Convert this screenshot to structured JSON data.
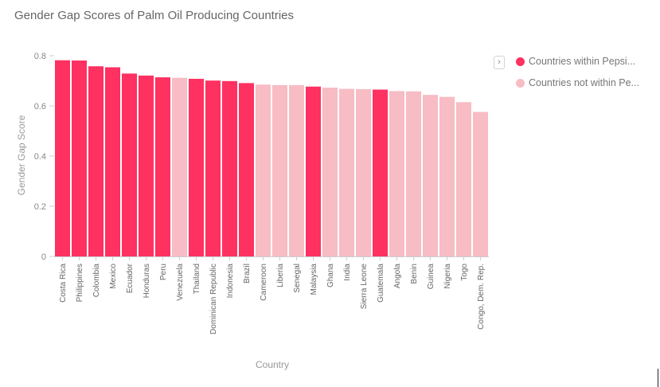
{
  "chart_data": {
    "type": "bar",
    "title": "Gender Gap Scores of Palm Oil Producing Countries",
    "xlabel": "Country",
    "ylabel": "Gender Gap Score",
    "ylim": [
      0,
      0.8
    ],
    "yticks": [
      0,
      0.2,
      0.4,
      0.6,
      0.8
    ],
    "ytick_labels": [
      "0",
      "0.2",
      "0.4",
      "0.6",
      "0.8"
    ],
    "grid": false,
    "legend_position": "top-right",
    "categories": [
      "Costa Rica",
      "Philippines",
      "Colombia",
      "Mexico",
      "Ecuador",
      "Honduras",
      "Peru",
      "Venezuela",
      "Thailand",
      "Dominican Republic",
      "Indonesia",
      "Brazil",
      "Cameroon",
      "Liberia",
      "Senegal",
      "Malaysia",
      "Ghana",
      "India",
      "Sierra Leone",
      "Guatemala",
      "Angola",
      "Benin",
      "Guinea",
      "Nigeria",
      "Togo",
      "Congo, Dem. Rep."
    ],
    "values": [
      0.782,
      0.781,
      0.758,
      0.754,
      0.729,
      0.721,
      0.714,
      0.712,
      0.708,
      0.701,
      0.699,
      0.691,
      0.685,
      0.683,
      0.683,
      0.677,
      0.673,
      0.668,
      0.667,
      0.665,
      0.659,
      0.658,
      0.644,
      0.636,
      0.615,
      0.576
    ],
    "groups": [
      0,
      0,
      0,
      0,
      0,
      0,
      0,
      1,
      0,
      0,
      0,
      0,
      1,
      1,
      1,
      0,
      1,
      1,
      1,
      0,
      1,
      1,
      1,
      1,
      1,
      1
    ],
    "series": [
      {
        "name": "Countries within Pepsi...",
        "color": "#fe3161"
      },
      {
        "name": "Countries not within Pe...",
        "color": "#f7bcc4"
      }
    ]
  },
  "legend": {
    "toggle_icon": "›"
  }
}
